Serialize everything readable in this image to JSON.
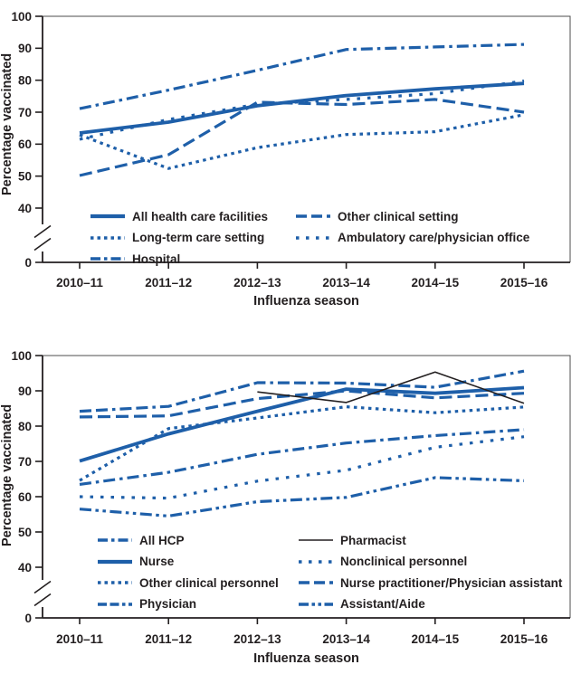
{
  "figure": {
    "y_axis_label": "Percentage vaccinated",
    "x_axis_label": "Influenza season"
  },
  "colors": {
    "series_blue": "#1e5fa9",
    "pharmacist_black": "#231f20",
    "axis": "#231f20",
    "frame": "#4d4d4d",
    "text": "#231f20"
  },
  "chart_data": [
    {
      "type": "line",
      "name": "vaccination-by-work-setting",
      "xlabel": "Influenza season",
      "ylabel": "Percentage vaccinated",
      "categories": [
        "2010–11",
        "2011–12",
        "2012–13",
        "2013–14",
        "2014–15",
        "2015–16"
      ],
      "y_ticks": [
        0,
        40,
        50,
        60,
        70,
        80,
        90,
        100
      ],
      "ylim": [
        40,
        100
      ],
      "y_axis_break": true,
      "grid": false,
      "legend_position": "inside-bottom",
      "series": [
        {
          "name": "Long-term care setting",
          "style": "dotted",
          "color": "series_blue",
          "values": [
            62.9,
            52.4,
            58.9,
            63.0,
            63.9,
            69.2
          ]
        },
        {
          "name": "Hospital",
          "style": "dashdot",
          "color": "series_blue",
          "values": [
            71.1,
            76.9,
            83.1,
            89.6,
            90.4,
            91.2
          ]
        },
        {
          "name": "Other clinical setting",
          "style": "longdash",
          "color": "series_blue",
          "values": [
            50.2,
            56.7,
            73.1,
            72.4,
            74.0,
            70.0
          ]
        },
        {
          "name": "Ambulatory care/physician office",
          "style": "sqsparse",
          "color": "series_blue",
          "values": [
            61.5,
            67.7,
            72.5,
            74.0,
            75.8,
            79.8
          ]
        },
        {
          "name": "All health care facilities",
          "style": "solid",
          "color": "series_blue",
          "values": [
            63.5,
            66.9,
            72.0,
            75.2,
            77.3,
            79.0
          ]
        }
      ],
      "legend_columns": [
        [
          4,
          0,
          1
        ],
        [
          2,
          3
        ]
      ]
    },
    {
      "type": "line",
      "name": "vaccination-by-occupation",
      "xlabel": "Influenza season",
      "ylabel": "Percentage vaccinated",
      "categories": [
        "2010–11",
        "2011–12",
        "2012–13",
        "2013–14",
        "2014–15",
        "2015–16"
      ],
      "y_ticks": [
        0,
        40,
        50,
        60,
        70,
        80,
        90,
        100
      ],
      "ylim": [
        40,
        100
      ],
      "y_axis_break": true,
      "grid": false,
      "legend_position": "inside-bottom",
      "series": [
        {
          "name": "All HCP",
          "style": "dashdot",
          "color": "series_blue",
          "values": [
            63.5,
            66.9,
            72.0,
            75.2,
            77.3,
            79.0
          ]
        },
        {
          "name": "Other clinical personnel",
          "style": "dotted",
          "color": "series_blue",
          "values": [
            64.6,
            79.3,
            82.3,
            85.5,
            83.8,
            85.4
          ]
        },
        {
          "name": "Physician",
          "style": "dashdashdot",
          "color": "series_blue",
          "values": [
            84.2,
            85.6,
            92.3,
            92.2,
            91.0,
            95.6
          ]
        },
        {
          "name": "Nonclinical personnel",
          "style": "sqsparse",
          "color": "series_blue",
          "values": [
            60.0,
            59.6,
            64.4,
            67.5,
            74.0,
            77.0
          ]
        },
        {
          "name": "Nurse practitioner/Physician assistant",
          "style": "longdash",
          "color": "series_blue",
          "values": [
            82.6,
            82.9,
            87.8,
            90.0,
            88.0,
            89.3
          ]
        },
        {
          "name": "Assistant/Aide",
          "style": "dashdotdot",
          "color": "series_blue",
          "values": [
            56.5,
            54.5,
            58.6,
            59.8,
            65.4,
            64.5
          ]
        },
        {
          "name": "Nurse",
          "style": "solid",
          "color": "series_blue",
          "values": [
            70.1,
            77.8,
            84.2,
            90.5,
            89.3,
            90.9
          ]
        },
        {
          "name": "Pharmacist",
          "style": "thinsolid",
          "color": "pharmacist_black",
          "values": [
            null,
            null,
            89.7,
            86.7,
            95.3,
            86.5
          ]
        }
      ],
      "legend_columns": [
        [
          0,
          6,
          1,
          2
        ],
        [
          7,
          3,
          4,
          5
        ]
      ]
    }
  ]
}
